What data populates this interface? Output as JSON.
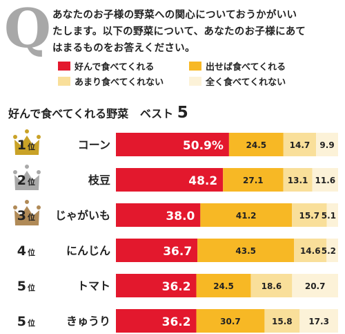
{
  "question": {
    "letter": "Q",
    "line1": "あなたのお子様の野菜への関心についておうかがいい",
    "line2": "たします。以下の野菜について、あなたのお子様にあて",
    "line3": "はまるものをお答えください。"
  },
  "section": {
    "title": "好んで食べてくれる野菜",
    "best": "ベスト",
    "best_number": "5"
  },
  "rank_suffix": "位",
  "colors": {
    "red": "#e3182d",
    "orange": "#f7b825",
    "light": "#f9df9a",
    "pale": "#fcf2d8",
    "gold": "#c9a227",
    "silver": "#a9a9a9",
    "bronze": "#b08a57"
  },
  "chart_data": {
    "type": "bar",
    "orientation": "horizontal",
    "stacked": true,
    "percent_of_total": true,
    "categories": [
      "コーン",
      "枝豆",
      "じゃがいも",
      "にんじん",
      "トマト",
      "きゅうり"
    ],
    "ranks": [
      "1",
      "2",
      "3",
      "4",
      "5",
      "5"
    ],
    "series": [
      {
        "name": "好んで食べてくれる",
        "color": "#e3182d",
        "values": [
          50.9,
          48.2,
          38.0,
          36.7,
          36.2,
          36.2
        ],
        "labels": [
          "50.9%",
          "48.2",
          "38.0",
          "36.7",
          "36.2",
          "36.2"
        ]
      },
      {
        "name": "出せば食べてくれる",
        "color": "#f7b825",
        "values": [
          24.5,
          27.1,
          41.2,
          43.5,
          24.5,
          30.7
        ],
        "labels": [
          "24.5",
          "27.1",
          "41.2",
          "43.5",
          "24.5",
          "30.7"
        ]
      },
      {
        "name": "あまり食べてくれない",
        "color": "#f9df9a",
        "values": [
          14.7,
          13.1,
          15.7,
          14.6,
          18.6,
          15.8
        ],
        "labels": [
          "14.7",
          "13.1",
          "15.7",
          "14.6",
          "18.6",
          "15.8"
        ]
      },
      {
        "name": "全く食べてくれない",
        "color": "#fcf2d8",
        "values": [
          9.9,
          11.6,
          5.1,
          5.2,
          20.7,
          17.3
        ],
        "labels": [
          "9.9",
          "11.6",
          "5.1",
          "5.2",
          "20.7",
          "17.3"
        ]
      }
    ]
  }
}
